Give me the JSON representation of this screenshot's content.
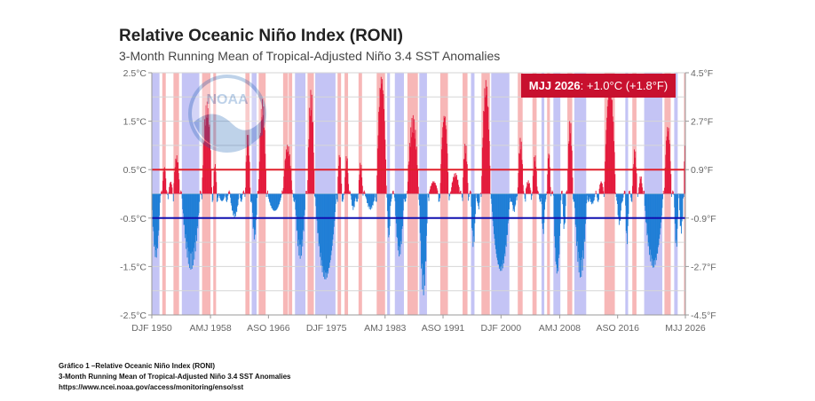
{
  "caption": {
    "line1": "Gráfico 1 –Relative Oceanic Niño Index (RONI)",
    "line2": "3-Month Running Mean of Tropical-Adjusted Niño 3.4 SST Anomalies",
    "line3": "https://www.ncei.noaa.gov/access/monitoring/enso/sst"
  },
  "logo": {
    "text": "NOAA",
    "icon": "noaa-logo-icon"
  },
  "badge": {
    "period": "MJJ 2026",
    "value": ": +1.0°C (+1.8°F)"
  },
  "colors": {
    "positive": "#e31a3c",
    "negative": "#1f7ed6",
    "el_nino_band": "#f7b7b7",
    "la_nina_band": "#c4c4f5",
    "upper_threshold": "#e0202a",
    "lower_threshold": "#1010b0",
    "badge": "#c8102e"
  },
  "chart_data": {
    "type": "bar",
    "title": "Relative Oceanic Niño Index (RONI)",
    "subtitle": "3-Month Running Mean of Tropical-Adjusted Niño 3.4 SST Anomalies",
    "x_range": [
      1950.0,
      2026.4
    ],
    "ylim_c": [
      -2.5,
      2.5
    ],
    "ylim_f": [
      -4.5,
      4.5
    ],
    "y_ticks_left": [
      "2.5°C",
      "1.5°C",
      "0.5°C",
      "-0.5°C",
      "-1.5°C",
      "-2.5°C"
    ],
    "y_ticks_left_values": [
      2.5,
      1.5,
      0.5,
      -0.5,
      -1.5,
      -2.5
    ],
    "y_ticks_right": [
      "4.5°F",
      "2.7°F",
      "0.9°F",
      "-0.9°F",
      "-2.7°F",
      "-4.5°F"
    ],
    "x_ticks": [
      {
        "label": "DJF 1950",
        "x": 1950.0
      },
      {
        "label": "AMJ 1958",
        "x": 1958.4
      },
      {
        "label": "ASO 1966",
        "x": 1966.7
      },
      {
        "label": "DJF 1975",
        "x": 1975.0
      },
      {
        "label": "AMJ 1983",
        "x": 1983.4
      },
      {
        "label": "ASO 1991",
        "x": 1991.7
      },
      {
        "label": "DJF 2000",
        "x": 2000.0
      },
      {
        "label": "AMJ 2008",
        "x": 2008.4
      },
      {
        "label": "ASO 2016",
        "x": 2016.7
      },
      {
        "label": "MJJ 2026",
        "x": 2026.4
      }
    ],
    "thresholds_c": [
      0.5,
      -0.5
    ],
    "grid": true,
    "el_nino_periods": [
      [
        1951.5,
        1952.0
      ],
      [
        1953.1,
        1953.9
      ],
      [
        1957.2,
        1958.4
      ],
      [
        1958.8,
        1959.2
      ],
      [
        1963.4,
        1964.0
      ],
      [
        1965.3,
        1966.3
      ],
      [
        1968.8,
        1969.5
      ],
      [
        1969.6,
        1970.1
      ],
      [
        1972.3,
        1973.2
      ],
      [
        1976.6,
        1977.1
      ],
      [
        1977.6,
        1978.1
      ],
      [
        1979.6,
        1980.1
      ],
      [
        1982.2,
        1983.4
      ],
      [
        1986.6,
        1988.1
      ],
      [
        1991.3,
        1992.4
      ],
      [
        1994.5,
        1995.2
      ],
      [
        1997.2,
        1998.4
      ],
      [
        2002.4,
        2003.1
      ],
      [
        2004.5,
        2005.1
      ],
      [
        2006.6,
        2007.0
      ],
      [
        2009.5,
        2010.2
      ],
      [
        2014.8,
        2016.3
      ],
      [
        2018.8,
        2019.4
      ],
      [
        2023.4,
        2024.3
      ],
      [
        2026.2,
        2026.4
      ]
    ],
    "la_nina_periods": [
      [
        1950.0,
        1951.1
      ],
      [
        1954.3,
        1956.8
      ],
      [
        1964.3,
        1965.0
      ],
      [
        1970.5,
        1972.0
      ],
      [
        1973.4,
        1976.3
      ],
      [
        1983.7,
        1984.1
      ],
      [
        1984.8,
        1986.1
      ],
      [
        1988.3,
        1989.4
      ],
      [
        1995.7,
        1996.2
      ],
      [
        1998.6,
        2001.2
      ],
      [
        2005.8,
        2006.2
      ],
      [
        2007.5,
        2008.5
      ],
      [
        2010.5,
        2012.2
      ],
      [
        2017.8,
        2018.2
      ],
      [
        2020.5,
        2023.1
      ],
      [
        2024.8,
        2025.3
      ]
    ],
    "events_c": [
      [
        1950.0,
        1951.2,
        -1.25
      ],
      [
        1951.5,
        1952.1,
        0.55
      ],
      [
        1952.4,
        1953.0,
        0.25
      ],
      [
        1953.1,
        1954.0,
        0.75
      ],
      [
        1954.3,
        1956.9,
        -1.4
      ],
      [
        1957.2,
        1958.6,
        1.75
      ],
      [
        1958.8,
        1959.3,
        0.6
      ],
      [
        1959.6,
        1960.5,
        -0.15
      ],
      [
        1961.2,
        1962.5,
        -0.45
      ],
      [
        1963.4,
        1964.1,
        1.15
      ],
      [
        1964.3,
        1965.1,
        -0.85
      ],
      [
        1965.3,
        1966.4,
        1.8
      ],
      [
        1966.6,
        1968.6,
        -0.35
      ],
      [
        1968.8,
        1970.1,
        0.95
      ],
      [
        1970.5,
        1972.0,
        -1.2
      ],
      [
        1972.3,
        1973.3,
        1.95
      ],
      [
        1973.4,
        1976.4,
        -1.7
      ],
      [
        1976.6,
        1977.2,
        0.8
      ],
      [
        1977.6,
        1978.2,
        0.75
      ],
      [
        1978.5,
        1979.2,
        -0.3
      ],
      [
        1979.6,
        1980.2,
        0.6
      ],
      [
        1980.6,
        1982.0,
        -0.3
      ],
      [
        1982.2,
        1983.6,
        2.35
      ],
      [
        1983.7,
        1984.2,
        -0.9
      ],
      [
        1984.8,
        1986.1,
        -1.2
      ],
      [
        1986.6,
        1988.2,
        1.45
      ],
      [
        1988.3,
        1989.5,
        -1.9
      ],
      [
        1989.7,
        1991.0,
        0.25
      ],
      [
        1991.3,
        1992.5,
        1.6
      ],
      [
        1992.8,
        1994.1,
        0.4
      ],
      [
        1994.5,
        1995.3,
        0.95
      ],
      [
        1995.7,
        1996.4,
        -1.0
      ],
      [
        1996.6,
        1997.0,
        -0.3
      ],
      [
        1997.2,
        1998.5,
        2.2
      ],
      [
        1998.6,
        2001.3,
        -1.55
      ],
      [
        2001.5,
        2002.2,
        -0.35
      ],
      [
        2002.4,
        2003.2,
        1.05
      ],
      [
        2003.5,
        2004.3,
        0.25
      ],
      [
        2004.5,
        2005.2,
        0.75
      ],
      [
        2005.8,
        2006.3,
        -0.8
      ],
      [
        2006.6,
        2007.1,
        0.85
      ],
      [
        2007.5,
        2008.6,
        -1.6
      ],
      [
        2008.8,
        2009.3,
        -0.7
      ],
      [
        2009.5,
        2010.3,
        1.4
      ],
      [
        2010.5,
        2012.3,
        -1.55
      ],
      [
        2012.6,
        2013.5,
        -0.2
      ],
      [
        2014.0,
        2014.7,
        0.25
      ],
      [
        2014.8,
        2016.4,
        2.2
      ],
      [
        2016.6,
        2017.3,
        -0.6
      ],
      [
        2017.8,
        2018.3,
        -0.95
      ],
      [
        2018.8,
        2019.5,
        0.85
      ],
      [
        2019.7,
        2020.3,
        0.35
      ],
      [
        2020.5,
        2023.2,
        -1.45
      ],
      [
        2023.4,
        2024.4,
        1.35
      ],
      [
        2024.8,
        2025.4,
        -1.05
      ],
      [
        2025.5,
        2026.1,
        -0.75
      ],
      [
        2026.2,
        2026.4,
        1.0
      ]
    ],
    "latest": {
      "period": "MJJ 2026",
      "value_c": 1.0,
      "value_f": 1.8
    }
  }
}
